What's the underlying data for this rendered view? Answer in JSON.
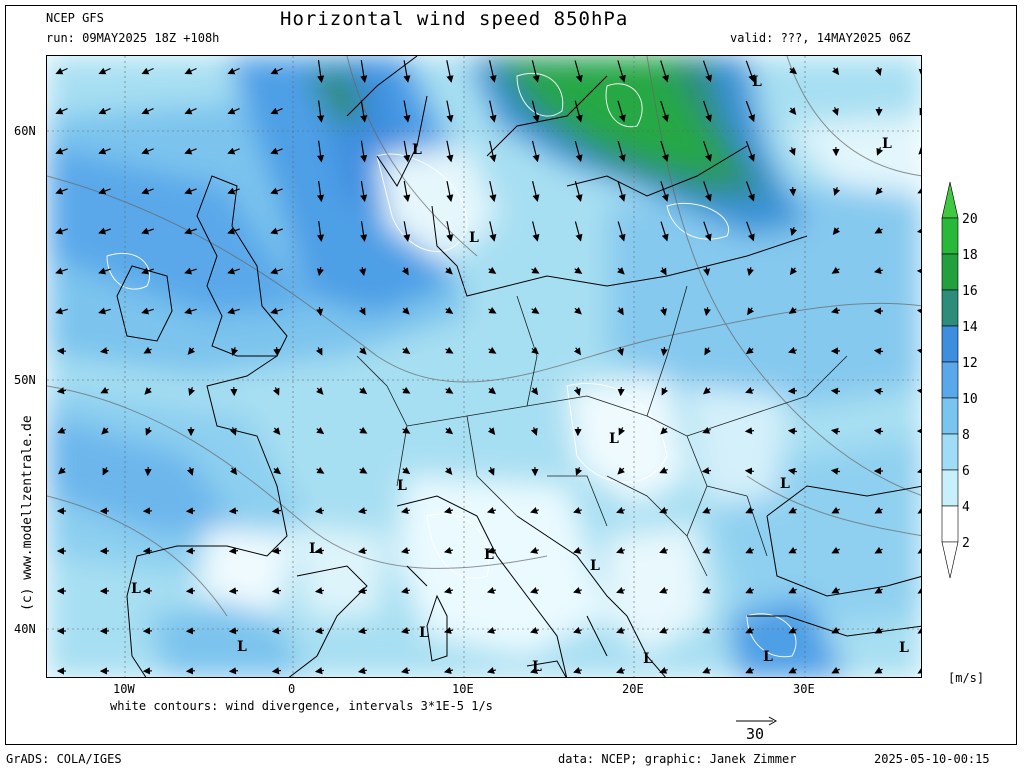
{
  "header": {
    "model": "NCEP GFS",
    "run": "run: 09MAY2025 18Z +108h",
    "title": "Horizontal wind speed 850hPa",
    "valid": "valid: ???, 14MAY2025 06Z"
  },
  "axes": {
    "lat_labels": [
      "60N",
      "50N",
      "40N"
    ],
    "lon_labels": [
      "10W",
      "0",
      "10E",
      "20E",
      "30E"
    ]
  },
  "colorbar": {
    "unit": "[m/s]",
    "levels": [
      "2",
      "4",
      "6",
      "8",
      "10",
      "12",
      "14",
      "16",
      "18",
      "20"
    ],
    "colors": [
      "#ffffff",
      "#c8f0fa",
      "#a0dcf5",
      "#7ac4f0",
      "#5aa8ea",
      "#3e8ee0",
      "#2e8c7a",
      "#22a040",
      "#28b83a",
      "#40c840"
    ]
  },
  "map_labels": {
    "low": "L"
  },
  "footer": {
    "divergence_note": "white contours: wind divergence, intervals 3*1E-5 1/s",
    "reference_vector": "30",
    "grads": "GrADS: COLA/IGES",
    "credit": "data: NCEP; graphic: Janek Zimmer",
    "timestamp": "2025-05-10-00:15",
    "watermark": "(c) www.modellzentrale.de"
  }
}
